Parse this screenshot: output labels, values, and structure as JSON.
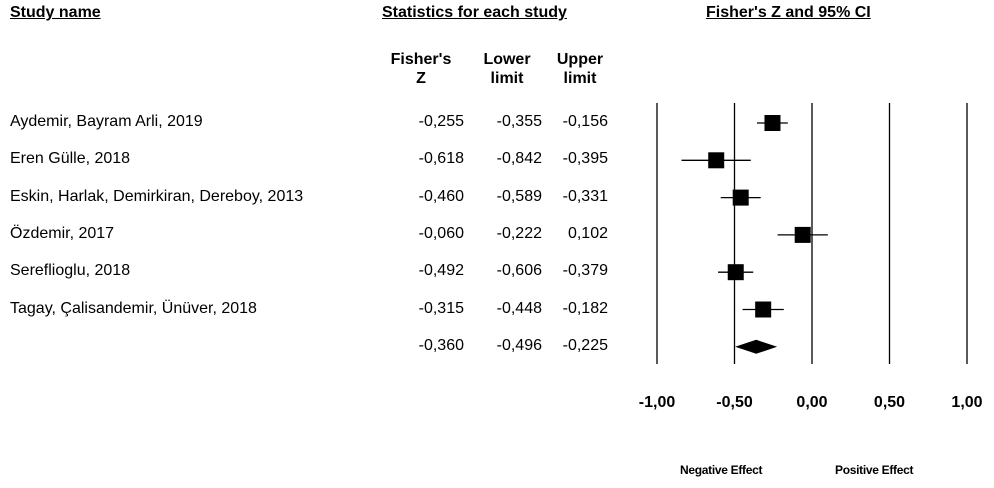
{
  "headers": {
    "study_name": "Study name",
    "statistics": "Statistics for each study",
    "plot": "Fisher's Z and 95% CI"
  },
  "columns": {
    "z_line1": "Fisher's",
    "z_line2": "Z",
    "lower_line1": "Lower",
    "lower_line2": "limit",
    "upper_line1": "Upper",
    "upper_line2": "limit"
  },
  "effects": {
    "negative": "Negative Effect",
    "positive": "Positive Effect"
  },
  "chart_data": {
    "type": "forest",
    "title": "Fisher's Z and 95% CI",
    "xlim": [
      -1.0,
      1.0
    ],
    "ticks": [
      -1.0,
      -0.5,
      0.0,
      0.5,
      1.0
    ],
    "tick_labels": [
      "-1,00",
      "-0,50",
      "0,00",
      "0,50",
      "1,00"
    ],
    "studies": [
      {
        "name": "Aydemir, Bayram Arli, 2019",
        "z": -0.255,
        "lower": -0.355,
        "upper": -0.156,
        "z_label": "-0,255",
        "lower_label": "-0,355",
        "upper_label": "-0,156"
      },
      {
        "name": "Eren Gülle, 2018",
        "z": -0.618,
        "lower": -0.842,
        "upper": -0.395,
        "z_label": "-0,618",
        "lower_label": "-0,842",
        "upper_label": "-0,395"
      },
      {
        "name": "Eskin, Harlak, Demirkiran, Dereboy, 2013",
        "z": -0.46,
        "lower": -0.589,
        "upper": -0.331,
        "z_label": "-0,460",
        "lower_label": "-0,589",
        "upper_label": "-0,331"
      },
      {
        "name": "Özdemir, 2017",
        "z": -0.06,
        "lower": -0.222,
        "upper": 0.102,
        "z_label": "-0,060",
        "lower_label": "-0,222",
        "upper_label": "0,102"
      },
      {
        "name": "Sereflioglu, 2018",
        "z": -0.492,
        "lower": -0.606,
        "upper": -0.379,
        "z_label": "-0,492",
        "lower_label": "-0,606",
        "upper_label": "-0,379"
      },
      {
        "name": "Tagay, Çalisandemir, Ünüver, 2018",
        "z": -0.315,
        "lower": -0.448,
        "upper": -0.182,
        "z_label": "-0,315",
        "lower_label": "-0,448",
        "upper_label": "-0,182"
      }
    ],
    "summary": {
      "z": -0.36,
      "lower": -0.496,
      "upper": -0.225,
      "z_label": "-0,360",
      "lower_label": "-0,496",
      "upper_label": "-0,225"
    }
  }
}
